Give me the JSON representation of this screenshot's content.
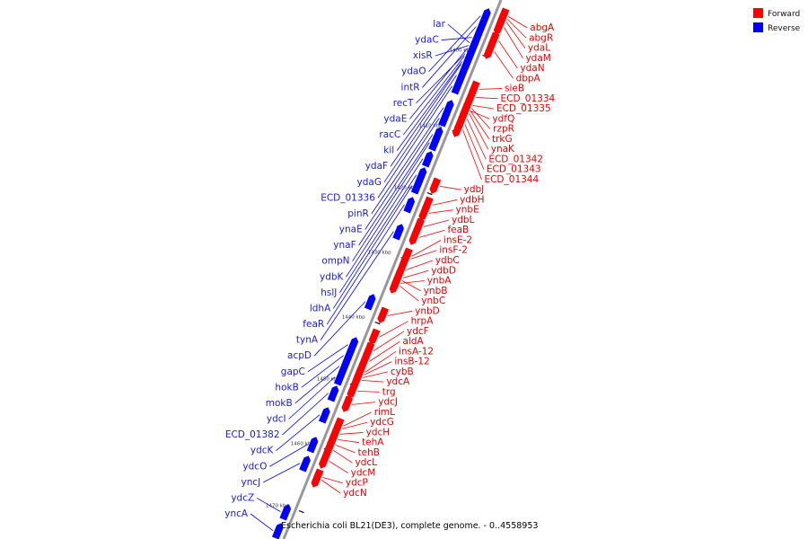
{
  "caption": "Escherichia coli BL21(DE3), complete genome. - 0..4558953",
  "legend": [
    {
      "label": "Forward",
      "color": "#ff0000"
    },
    {
      "label": "Reverse",
      "color": "#0000ff"
    }
  ],
  "strand_colors": {
    "forward": "#ff0000",
    "reverse": "#0000ff",
    "backbone": "#999999"
  },
  "ruler": [
    {
      "label": "1400 kbp",
      "t": 0.1
    },
    {
      "label": "1410 kbp",
      "t": 0.24
    },
    {
      "label": "1420 kbp",
      "t": 0.355
    },
    {
      "label": "1430 kbp",
      "t": 0.475
    },
    {
      "label": "1440 kbp",
      "t": 0.595
    },
    {
      "label": "1450 kbp",
      "t": 0.71
    },
    {
      "label": "1460 kbp",
      "t": 0.83
    },
    {
      "label": "1470 kbp",
      "t": 0.945
    }
  ],
  "reverse_genes": [
    {
      "name": "lar",
      "t": 0.085
    },
    {
      "name": "ydaC",
      "t": 0.075
    },
    {
      "name": "xisR",
      "t": 0.09
    },
    {
      "name": "ydaO",
      "t": 0.035
    },
    {
      "name": "intR",
      "t": 0.055
    },
    {
      "name": "recT",
      "t": 0.105
    },
    {
      "name": "ydaE",
      "t": 0.095
    },
    {
      "name": "racC",
      "t": 0.11
    },
    {
      "name": "kil",
      "t": 0.12
    },
    {
      "name": "ydaF",
      "t": 0.125
    },
    {
      "name": "ydaG",
      "t": 0.145
    },
    {
      "name": "ECD_01336",
      "t": 0.165
    },
    {
      "name": "pinR",
      "t": 0.205
    },
    {
      "name": "ynaE",
      "t": 0.225
    },
    {
      "name": "ynaF",
      "t": 0.255
    },
    {
      "name": "ompN",
      "t": 0.27
    },
    {
      "name": "ydbK",
      "t": 0.3
    },
    {
      "name": "hslJ",
      "t": 0.33
    },
    {
      "name": "ldhA",
      "t": 0.35
    },
    {
      "name": "feaR",
      "t": 0.385
    },
    {
      "name": "tynA",
      "t": 0.435
    },
    {
      "name": "acpD",
      "t": 0.565
    },
    {
      "name": "gapC",
      "t": 0.645
    },
    {
      "name": "hokB",
      "t": 0.665
    },
    {
      "name": "mokB",
      "t": 0.685
    },
    {
      "name": "ydcI",
      "t": 0.705
    },
    {
      "name": "ECD_01382",
      "t": 0.735
    },
    {
      "name": "ydcK",
      "t": 0.775
    },
    {
      "name": "ydcO",
      "t": 0.83
    },
    {
      "name": "yncJ",
      "t": 0.865
    },
    {
      "name": "ydcZ",
      "t": 0.955
    },
    {
      "name": "yncA",
      "t": 0.99
    }
  ],
  "forward_genes": [
    {
      "name": "abgA",
      "t": 0.025
    },
    {
      "name": "abgR",
      "t": 0.03
    },
    {
      "name": "ydaL",
      "t": 0.035
    },
    {
      "name": "ydaM",
      "t": 0.045
    },
    {
      "name": "ydaN",
      "t": 0.07
    },
    {
      "name": "dbpA",
      "t": 0.09
    },
    {
      "name": "sieB",
      "t": 0.16
    },
    {
      "name": "ECD_01334",
      "t": 0.175
    },
    {
      "name": "ECD_01335",
      "t": 0.19
    },
    {
      "name": "ydfQ",
      "t": 0.2
    },
    {
      "name": "rzpR",
      "t": 0.195
    },
    {
      "name": "trkG",
      "t": 0.2
    },
    {
      "name": "ynaK",
      "t": 0.205
    },
    {
      "name": "ECD_01342",
      "t": 0.215
    },
    {
      "name": "ECD_01343",
      "t": 0.225
    },
    {
      "name": "ECD_01344",
      "t": 0.235
    },
    {
      "name": "ydbJ",
      "t": 0.34
    },
    {
      "name": "ydbH",
      "t": 0.375
    },
    {
      "name": "ynbE",
      "t": 0.39
    },
    {
      "name": "ydbL",
      "t": 0.415
    },
    {
      "name": "feaB",
      "t": 0.435
    },
    {
      "name": "insE-2",
      "t": 0.47
    },
    {
      "name": "insF-2",
      "t": 0.475
    },
    {
      "name": "ydbC",
      "t": 0.495
    },
    {
      "name": "ydbD",
      "t": 0.51
    },
    {
      "name": "ynbA",
      "t": 0.52
    },
    {
      "name": "ynbB",
      "t": 0.515
    },
    {
      "name": "ynbC",
      "t": 0.525
    },
    {
      "name": "ynbD",
      "t": 0.58
    },
    {
      "name": "hrpA",
      "t": 0.62
    },
    {
      "name": "ydcF",
      "t": 0.645
    },
    {
      "name": "aldA",
      "t": 0.665
    },
    {
      "name": "insA-12",
      "t": 0.685
    },
    {
      "name": "insB-12",
      "t": 0.69
    },
    {
      "name": "cybB",
      "t": 0.695
    },
    {
      "name": "ydcA",
      "t": 0.7
    },
    {
      "name": "trg",
      "t": 0.72
    },
    {
      "name": "ydcJ",
      "t": 0.745
    },
    {
      "name": "rimL",
      "t": 0.785
    },
    {
      "name": "ydcG",
      "t": 0.79
    },
    {
      "name": "ydcH",
      "t": 0.8
    },
    {
      "name": "tehA",
      "t": 0.81
    },
    {
      "name": "tehB",
      "t": 0.82
    },
    {
      "name": "ydcL",
      "t": 0.83
    },
    {
      "name": "ydcM",
      "t": 0.85
    },
    {
      "name": "ydcP",
      "t": 0.88
    },
    {
      "name": "ydcN",
      "t": 0.885
    }
  ]
}
